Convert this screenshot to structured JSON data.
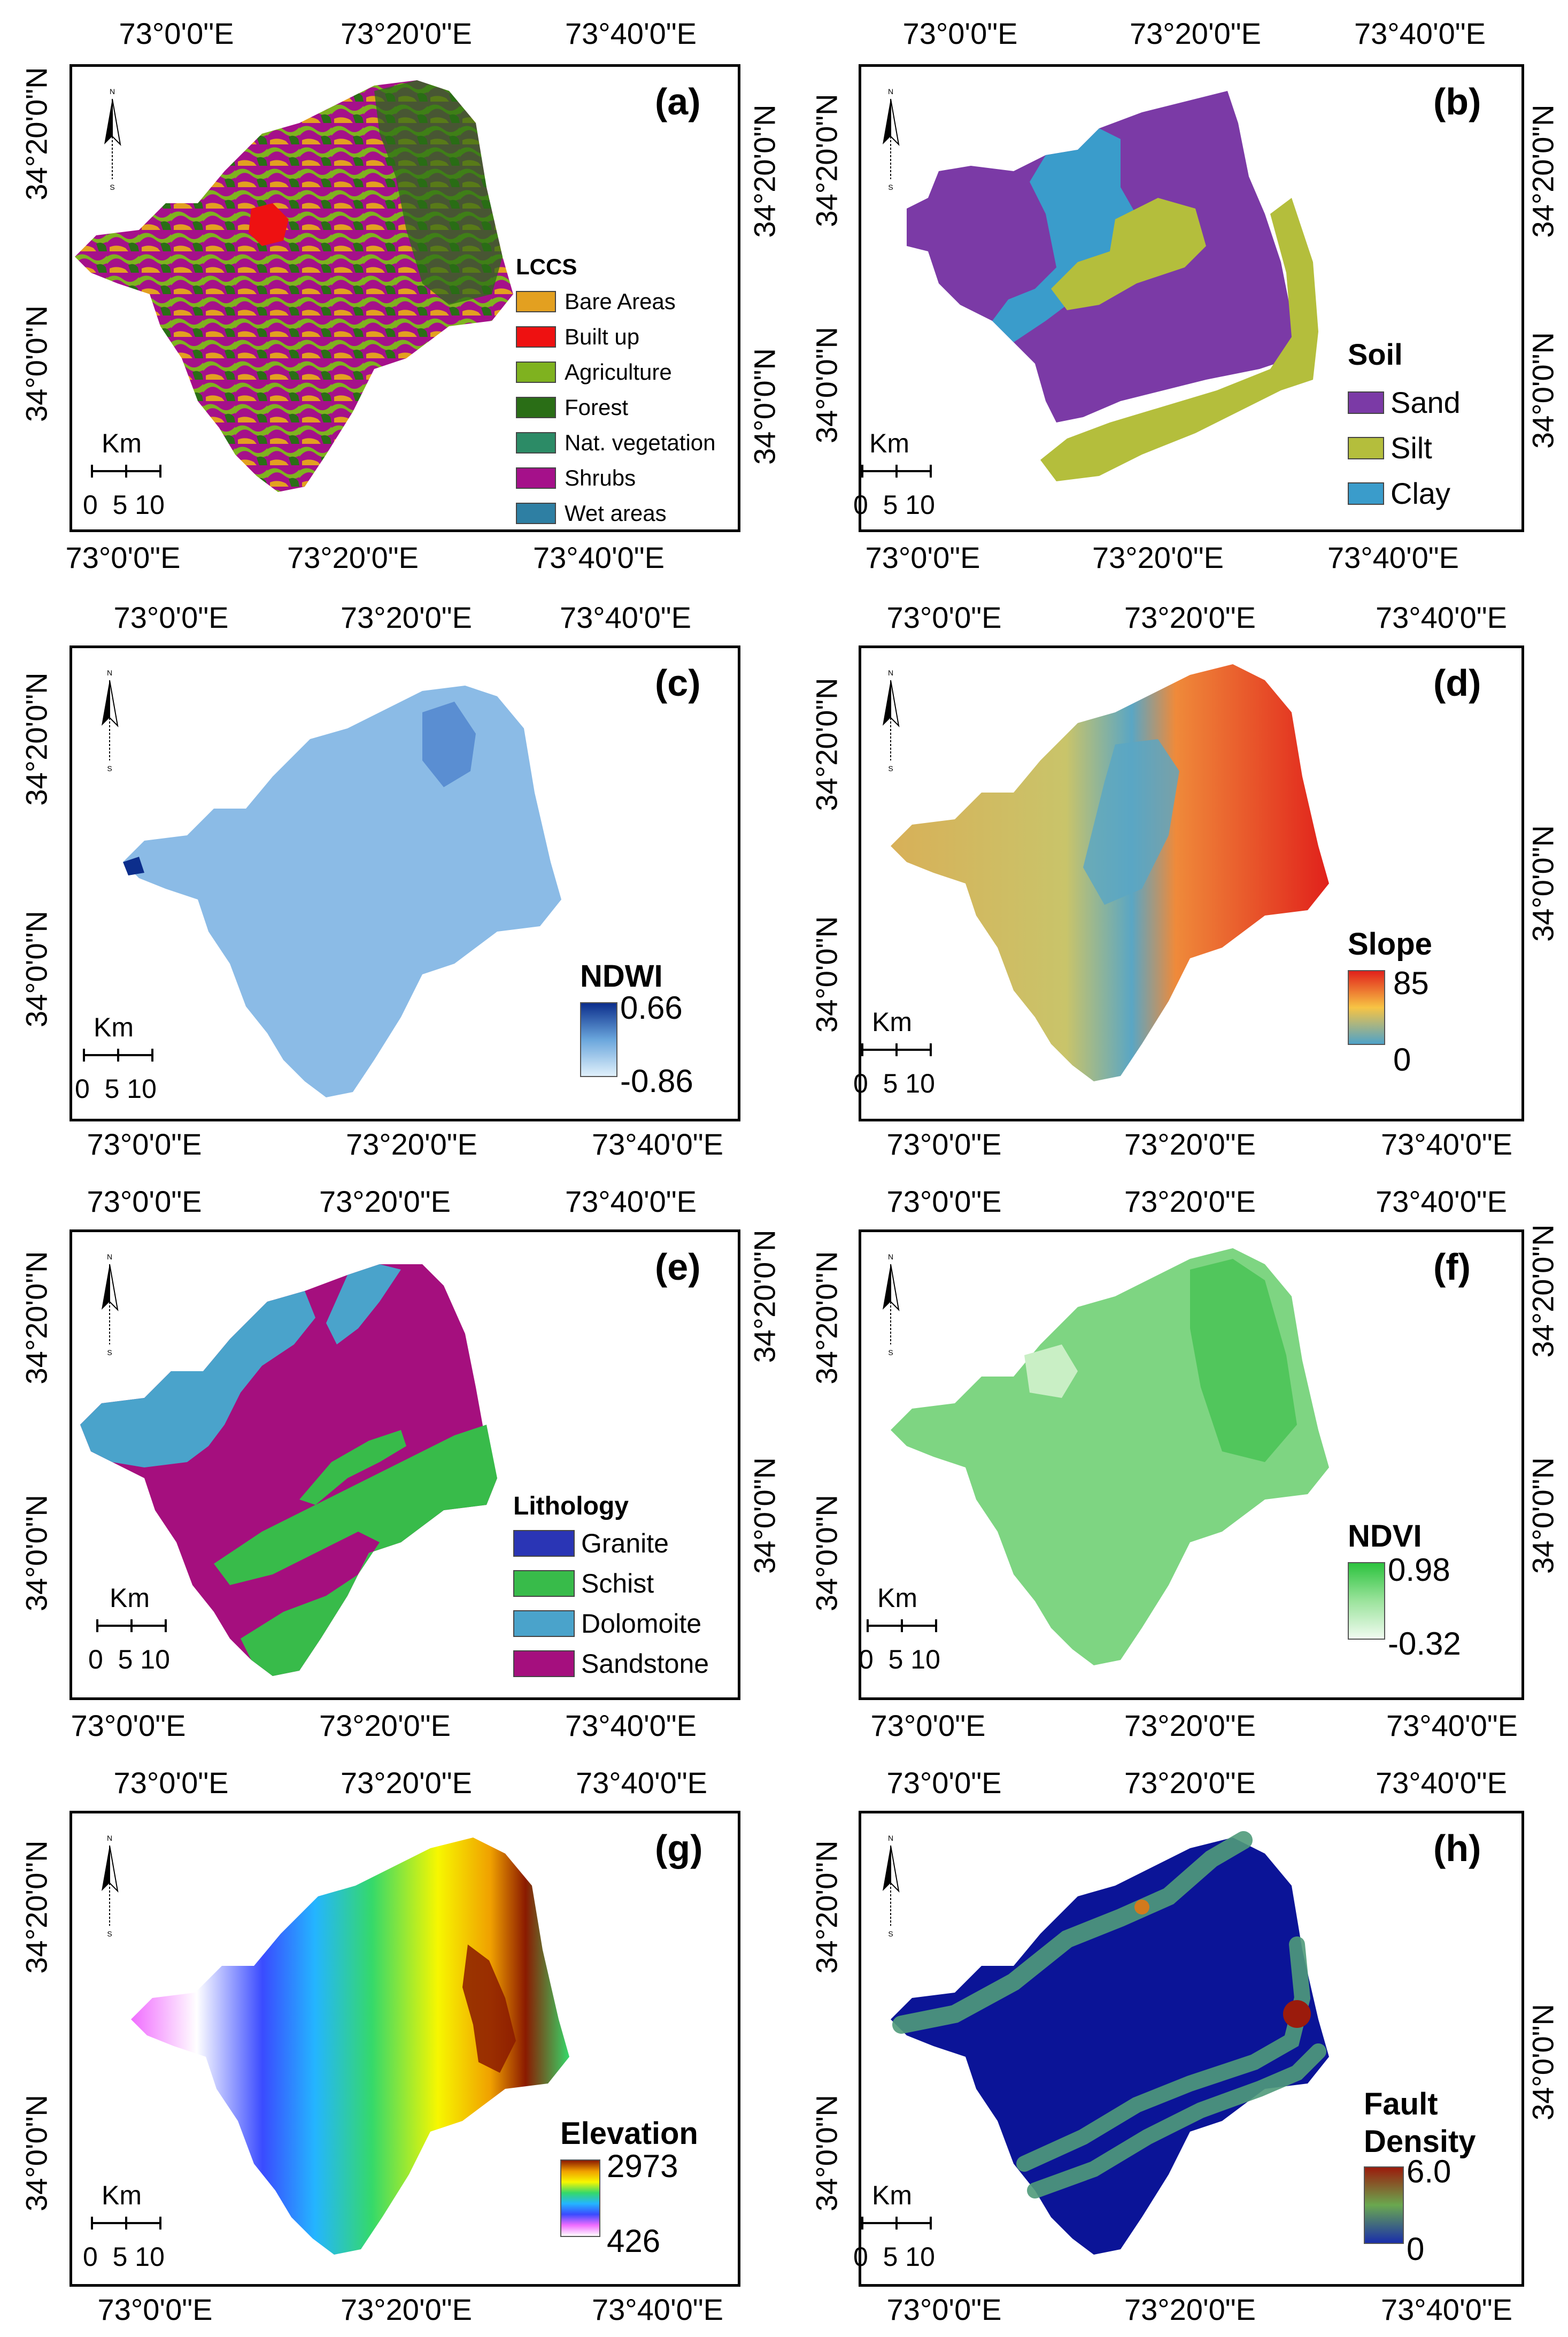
{
  "coords": {
    "lon": [
      "73°0'0\"E",
      "73°20'0\"E",
      "73°40'0\"E"
    ],
    "lat_top": "34°20'0\"N",
    "lat_mid": "34°0'0\"N"
  },
  "scalebar": {
    "unit": "Km",
    "ticks": "0  5 10"
  },
  "north": {
    "n": "N",
    "s": "S"
  },
  "panels": {
    "a": {
      "label": "(a)",
      "legend_title": "LCCS",
      "items": [
        {
          "name": "Bare Areas",
          "color": "#e3a020"
        },
        {
          "name": "Built up",
          "color": "#ee1111"
        },
        {
          "name": "Agriculture",
          "color": "#7fb21f"
        },
        {
          "name": "Forest",
          "color": "#2a6e16"
        },
        {
          "name": "Nat. vegetation",
          "color": "#2c8b66"
        },
        {
          "name": "Shrubs",
          "color": "#a5108a"
        },
        {
          "name": "Wet areas",
          "color": "#2e7fa3"
        }
      ]
    },
    "b": {
      "label": "(b)",
      "legend_title": "Soil",
      "items": [
        {
          "name": "Sand",
          "color": "#7b3aa6"
        },
        {
          "name": "Silt",
          "color": "#b4be3c"
        },
        {
          "name": "Clay",
          "color": "#3a9ccb"
        }
      ]
    },
    "c": {
      "label": "(c)",
      "legend_title": "NDWI",
      "max": "0.66",
      "min": "-0.86",
      "ramp": [
        "#0c2e8c",
        "#6aa6dc",
        "#e0f0fb"
      ],
      "fill": "#8bbbe6"
    },
    "d": {
      "label": "(d)",
      "legend_title": "Slope",
      "max": "85",
      "min": "0",
      "ramp": [
        "#e1211b",
        "#f7c444",
        "#4fa3c9"
      ]
    },
    "e": {
      "label": "(e)",
      "legend_title": "Lithology",
      "items": [
        {
          "name": "Granite",
          "color": "#2a35b5"
        },
        {
          "name": "Schist",
          "color": "#38bb4a"
        },
        {
          "name": "Dolomoite",
          "color": "#4aa3cb"
        },
        {
          "name": "Sandstone",
          "color": "#a50f7e"
        }
      ]
    },
    "f": {
      "label": "(f)",
      "legend_title": "NDVI",
      "max": "0.98",
      "min": "-0.32",
      "ramp": [
        "#2cc33e",
        "#9be39c",
        "#f0fbf0"
      ],
      "fill": "#7ed582"
    },
    "g": {
      "label": "(g)",
      "legend_title": "Elevation",
      "max": "2973",
      "min": "426",
      "ramp": [
        "#8b1a00",
        "#f0a000",
        "#f7f700",
        "#35d96a",
        "#24b5ff",
        "#3a4bff",
        "#f06cff",
        "#ffffff"
      ]
    },
    "h": {
      "label": "(h)",
      "legend_title_1": "Fault",
      "legend_title_2": "Density",
      "max": "6.0",
      "min": "0",
      "ramp": [
        "#9b1b0c",
        "#6aa84f",
        "#1a2eaa"
      ],
      "fill": "#0b1497",
      "band": "#4f9a7a"
    }
  }
}
